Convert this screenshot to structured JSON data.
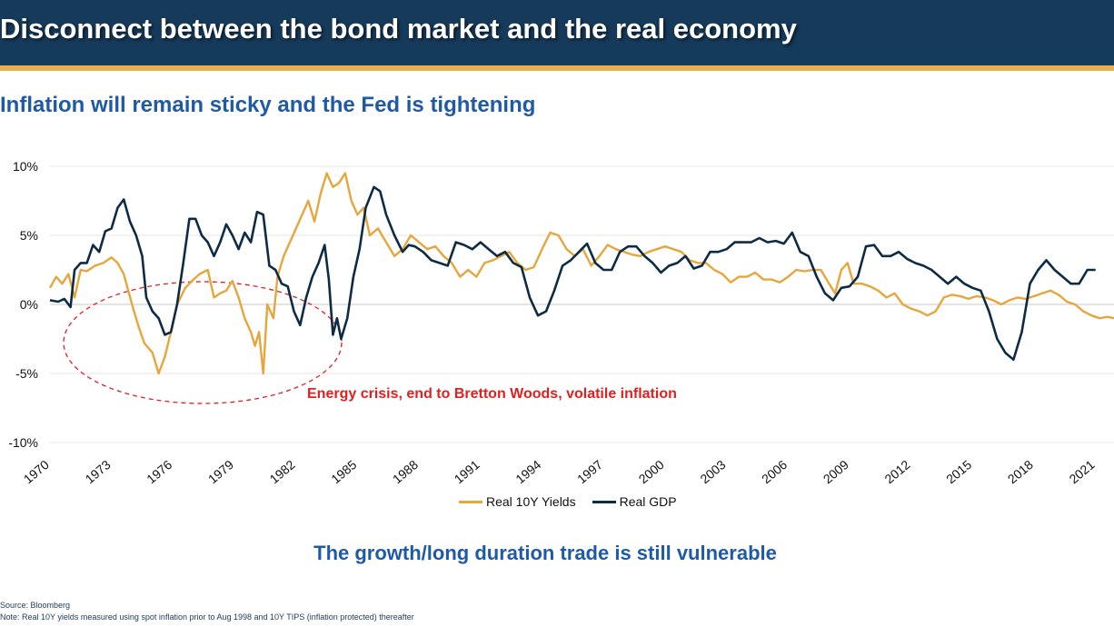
{
  "header": {
    "title": "Disconnect between the bond market and the real economy",
    "subtitle": "Inflation will remain sticky and the Fed is tightening"
  },
  "colors": {
    "banner": "#163a5a",
    "stripe": "#e7b04e",
    "real_yields": "#e7a63c",
    "real_gdp": "#0e2b45",
    "annotation": "#e02020",
    "accent_text": "#1f5aa6"
  },
  "chart_data": {
    "type": "line",
    "title": "",
    "xlabel": "",
    "ylabel": "",
    "x_range": [
      1970,
      2021.9
    ],
    "ylim": [
      -10,
      12
    ],
    "y_ticks": [
      10,
      5,
      0,
      -5,
      -10
    ],
    "y_tick_labels": [
      "10%",
      "5%",
      "0%",
      "-5%",
      "-10%"
    ],
    "x_ticks": [
      1970,
      1973,
      1976,
      1979,
      1982,
      1985,
      1988,
      1991,
      1994,
      1997,
      2000,
      2003,
      2006,
      2009,
      2012,
      2015,
      2018,
      2021
    ],
    "grid": "horizontal",
    "legend_position": "bottom",
    "series": [
      {
        "name": "Real 10Y Yields",
        "color": "#e7a63c",
        "points": [
          [
            1970.0,
            1.2
          ],
          [
            1970.3,
            2.0
          ],
          [
            1970.6,
            1.5
          ],
          [
            1970.9,
            2.2
          ],
          [
            1971.2,
            0.5
          ],
          [
            1971.5,
            2.5
          ],
          [
            1971.8,
            2.4
          ],
          [
            1972.2,
            2.8
          ],
          [
            1972.6,
            3.0
          ],
          [
            1973.0,
            3.4
          ],
          [
            1973.3,
            3.0
          ],
          [
            1973.6,
            2.2
          ],
          [
            1974.0,
            0.0
          ],
          [
            1974.3,
            -1.5
          ],
          [
            1974.6,
            -2.8
          ],
          [
            1975.0,
            -3.5
          ],
          [
            1975.3,
            -5.0
          ],
          [
            1975.6,
            -3.8
          ],
          [
            1975.9,
            -2.0
          ],
          [
            1976.2,
            0.0
          ],
          [
            1976.6,
            1.2
          ],
          [
            1977.0,
            1.8
          ],
          [
            1977.3,
            2.2
          ],
          [
            1977.7,
            2.5
          ],
          [
            1978.0,
            0.5
          ],
          [
            1978.3,
            0.8
          ],
          [
            1978.6,
            1.0
          ],
          [
            1978.9,
            1.7
          ],
          [
            1979.2,
            0.5
          ],
          [
            1979.5,
            -1.0
          ],
          [
            1979.8,
            -2.0
          ],
          [
            1980.0,
            -3.0
          ],
          [
            1980.2,
            -2.0
          ],
          [
            1980.4,
            -5.0
          ],
          [
            1980.6,
            0.0
          ],
          [
            1980.9,
            -1.0
          ],
          [
            1981.1,
            2.0
          ],
          [
            1981.4,
            3.5
          ],
          [
            1981.7,
            4.5
          ],
          [
            1982.0,
            5.5
          ],
          [
            1982.3,
            6.5
          ],
          [
            1982.6,
            7.5
          ],
          [
            1982.9,
            6.0
          ],
          [
            1983.2,
            8.0
          ],
          [
            1983.5,
            9.5
          ],
          [
            1983.8,
            8.5
          ],
          [
            1984.1,
            8.8
          ],
          [
            1984.4,
            9.5
          ],
          [
            1984.7,
            7.5
          ],
          [
            1985.0,
            6.5
          ],
          [
            1985.3,
            7.0
          ],
          [
            1985.6,
            5.0
          ],
          [
            1986.0,
            5.5
          ],
          [
            1986.4,
            4.5
          ],
          [
            1986.8,
            3.5
          ],
          [
            1987.2,
            4.0
          ],
          [
            1987.6,
            5.0
          ],
          [
            1988.0,
            4.5
          ],
          [
            1988.4,
            4.0
          ],
          [
            1988.8,
            4.2
          ],
          [
            1989.2,
            3.5
          ],
          [
            1989.6,
            3.0
          ],
          [
            1990.0,
            2.0
          ],
          [
            1990.4,
            2.5
          ],
          [
            1990.8,
            2.0
          ],
          [
            1991.2,
            3.0
          ],
          [
            1991.6,
            3.2
          ],
          [
            1992.0,
            3.5
          ],
          [
            1992.4,
            3.8
          ],
          [
            1992.8,
            3.0
          ],
          [
            1993.2,
            2.5
          ],
          [
            1993.6,
            2.7
          ],
          [
            1994.0,
            4.0
          ],
          [
            1994.4,
            5.2
          ],
          [
            1994.8,
            5.0
          ],
          [
            1995.2,
            4.0
          ],
          [
            1995.6,
            3.5
          ],
          [
            1996.0,
            4.0
          ],
          [
            1996.4,
            2.8
          ],
          [
            1996.8,
            3.5
          ],
          [
            1997.2,
            4.3
          ],
          [
            1997.6,
            4.0
          ],
          [
            1998.0,
            3.8
          ],
          [
            1998.4,
            3.6
          ],
          [
            1998.8,
            3.5
          ],
          [
            1999.2,
            3.8
          ],
          [
            1999.6,
            4.0
          ],
          [
            2000.0,
            4.2
          ],
          [
            2000.4,
            4.0
          ],
          [
            2000.8,
            3.8
          ],
          [
            2001.2,
            3.2
          ],
          [
            2001.6,
            3.0
          ],
          [
            2002.0,
            3.0
          ],
          [
            2002.4,
            2.5
          ],
          [
            2002.8,
            2.2
          ],
          [
            2003.2,
            1.6
          ],
          [
            2003.6,
            2.0
          ],
          [
            2004.0,
            2.0
          ],
          [
            2004.4,
            2.3
          ],
          [
            2004.8,
            1.8
          ],
          [
            2005.2,
            1.8
          ],
          [
            2005.6,
            1.6
          ],
          [
            2006.0,
            2.0
          ],
          [
            2006.4,
            2.5
          ],
          [
            2006.8,
            2.4
          ],
          [
            2007.2,
            2.5
          ],
          [
            2007.6,
            2.5
          ],
          [
            2008.0,
            1.5
          ],
          [
            2008.3,
            0.8
          ],
          [
            2008.6,
            2.5
          ],
          [
            2008.9,
            3.0
          ],
          [
            2009.2,
            1.5
          ],
          [
            2009.6,
            1.5
          ],
          [
            2010.0,
            1.3
          ],
          [
            2010.4,
            1.0
          ],
          [
            2010.8,
            0.5
          ],
          [
            2011.2,
            0.8
          ],
          [
            2011.6,
            0.0
          ],
          [
            2012.0,
            -0.3
          ],
          [
            2012.4,
            -0.5
          ],
          [
            2012.8,
            -0.8
          ],
          [
            2013.2,
            -0.5
          ],
          [
            2013.6,
            0.5
          ],
          [
            2014.0,
            0.7
          ],
          [
            2014.4,
            0.6
          ],
          [
            2014.8,
            0.4
          ],
          [
            2015.2,
            0.6
          ],
          [
            2015.6,
            0.5
          ],
          [
            2016.0,
            0.3
          ],
          [
            2016.4,
            0.0
          ],
          [
            2016.8,
            0.3
          ],
          [
            2017.2,
            0.5
          ],
          [
            2017.6,
            0.4
          ],
          [
            2018.0,
            0.6
          ],
          [
            2018.4,
            0.8
          ],
          [
            2018.8,
            1.0
          ],
          [
            2019.2,
            0.7
          ],
          [
            2019.6,
            0.2
          ],
          [
            2020.0,
            0.0
          ],
          [
            2020.4,
            -0.5
          ],
          [
            2020.8,
            -0.8
          ],
          [
            2021.2,
            -1.0
          ],
          [
            2021.6,
            -0.9
          ],
          [
            2021.9,
            -1.0
          ]
        ]
      },
      {
        "name": "Real GDP",
        "color": "#0e2b45",
        "points": [
          [
            1970.0,
            0.3
          ],
          [
            1970.4,
            0.2
          ],
          [
            1970.7,
            0.4
          ],
          [
            1971.0,
            -0.2
          ],
          [
            1971.2,
            2.5
          ],
          [
            1971.5,
            3.0
          ],
          [
            1971.8,
            3.0
          ],
          [
            1972.1,
            4.3
          ],
          [
            1972.4,
            3.8
          ],
          [
            1972.7,
            5.3
          ],
          [
            1973.0,
            5.5
          ],
          [
            1973.3,
            7.0
          ],
          [
            1973.6,
            7.6
          ],
          [
            1973.9,
            6.0
          ],
          [
            1974.2,
            5.0
          ],
          [
            1974.5,
            3.5
          ],
          [
            1974.7,
            0.5
          ],
          [
            1975.0,
            -0.5
          ],
          [
            1975.3,
            -1.0
          ],
          [
            1975.6,
            -2.2
          ],
          [
            1975.9,
            -2.0
          ],
          [
            1976.2,
            0.0
          ],
          [
            1976.5,
            3.0
          ],
          [
            1976.8,
            6.2
          ],
          [
            1977.1,
            6.2
          ],
          [
            1977.4,
            5.0
          ],
          [
            1977.7,
            4.5
          ],
          [
            1978.0,
            3.5
          ],
          [
            1978.3,
            4.5
          ],
          [
            1978.6,
            5.8
          ],
          [
            1978.9,
            5.0
          ],
          [
            1979.2,
            4.0
          ],
          [
            1979.5,
            5.2
          ],
          [
            1979.8,
            4.5
          ],
          [
            1980.1,
            6.7
          ],
          [
            1980.4,
            6.5
          ],
          [
            1980.7,
            2.8
          ],
          [
            1981.0,
            2.5
          ],
          [
            1981.3,
            1.5
          ],
          [
            1981.6,
            1.3
          ],
          [
            1981.9,
            -0.5
          ],
          [
            1982.2,
            -1.5
          ],
          [
            1982.5,
            0.5
          ],
          [
            1982.8,
            2.0
          ],
          [
            1983.1,
            3.0
          ],
          [
            1983.4,
            4.3
          ],
          [
            1983.6,
            1.8
          ],
          [
            1983.8,
            -2.2
          ],
          [
            1984.0,
            -1.0
          ],
          [
            1984.2,
            -2.5
          ],
          [
            1984.5,
            -1.0
          ],
          [
            1984.8,
            2.0
          ],
          [
            1985.1,
            4.0
          ],
          [
            1985.4,
            7.0
          ],
          [
            1985.8,
            8.5
          ],
          [
            1986.1,
            8.2
          ],
          [
            1986.4,
            6.5
          ],
          [
            1986.8,
            5.0
          ],
          [
            1987.2,
            3.8
          ],
          [
            1987.5,
            4.3
          ],
          [
            1987.8,
            4.2
          ],
          [
            1988.2,
            3.8
          ],
          [
            1988.6,
            3.2
          ],
          [
            1989.0,
            3.0
          ],
          [
            1989.4,
            2.8
          ],
          [
            1989.8,
            4.5
          ],
          [
            1990.2,
            4.3
          ],
          [
            1990.6,
            4.0
          ],
          [
            1991.0,
            4.5
          ],
          [
            1991.4,
            4.0
          ],
          [
            1991.8,
            3.5
          ],
          [
            1992.2,
            3.8
          ],
          [
            1992.6,
            3.0
          ],
          [
            1993.0,
            2.7
          ],
          [
            1993.4,
            0.5
          ],
          [
            1993.8,
            -0.8
          ],
          [
            1994.2,
            -0.5
          ],
          [
            1994.6,
            1.0
          ],
          [
            1995.0,
            2.8
          ],
          [
            1995.4,
            3.2
          ],
          [
            1995.8,
            3.8
          ],
          [
            1996.2,
            4.4
          ],
          [
            1996.6,
            3.0
          ],
          [
            1997.0,
            2.5
          ],
          [
            1997.4,
            2.5
          ],
          [
            1997.8,
            3.8
          ],
          [
            1998.2,
            4.2
          ],
          [
            1998.6,
            4.2
          ],
          [
            1999.0,
            3.5
          ],
          [
            1999.4,
            3.0
          ],
          [
            1999.8,
            2.3
          ],
          [
            2000.2,
            2.8
          ],
          [
            2000.6,
            3.0
          ],
          [
            2001.0,
            3.5
          ],
          [
            2001.4,
            2.6
          ],
          [
            2001.8,
            2.8
          ],
          [
            2002.2,
            3.8
          ],
          [
            2002.6,
            3.8
          ],
          [
            2003.0,
            4.0
          ],
          [
            2003.4,
            4.5
          ],
          [
            2003.8,
            4.5
          ],
          [
            2004.2,
            4.5
          ],
          [
            2004.6,
            4.8
          ],
          [
            2005.0,
            4.5
          ],
          [
            2005.4,
            4.6
          ],
          [
            2005.8,
            4.4
          ],
          [
            2006.2,
            5.2
          ],
          [
            2006.6,
            3.8
          ],
          [
            2007.0,
            3.5
          ],
          [
            2007.4,
            2.0
          ],
          [
            2007.8,
            0.8
          ],
          [
            2008.2,
            0.3
          ],
          [
            2008.6,
            1.2
          ],
          [
            2009.0,
            1.3
          ],
          [
            2009.4,
            2.0
          ],
          [
            2009.8,
            4.2
          ],
          [
            2010.2,
            4.3
          ],
          [
            2010.6,
            3.5
          ],
          [
            2011.0,
            3.5
          ],
          [
            2011.4,
            3.8
          ],
          [
            2011.8,
            3.3
          ],
          [
            2012.2,
            3.0
          ],
          [
            2012.6,
            2.8
          ],
          [
            2013.0,
            2.5
          ],
          [
            2013.4,
            2.0
          ],
          [
            2013.8,
            1.5
          ],
          [
            2014.2,
            2.0
          ],
          [
            2014.6,
            1.5
          ],
          [
            2015.0,
            1.2
          ],
          [
            2015.4,
            1.0
          ],
          [
            2015.8,
            -0.5
          ],
          [
            2016.2,
            -2.5
          ],
          [
            2016.6,
            -3.5
          ],
          [
            2017.0,
            -4.0
          ],
          [
            2017.4,
            -2.0
          ],
          [
            2017.8,
            1.5
          ],
          [
            2018.2,
            2.5
          ],
          [
            2018.6,
            3.2
          ],
          [
            2019.0,
            2.5
          ],
          [
            2019.4,
            2.0
          ],
          [
            2019.8,
            1.5
          ],
          [
            2020.2,
            1.5
          ],
          [
            2020.6,
            2.5
          ],
          [
            2021.0,
            2.5
          ]
        ]
      }
    ],
    "annotation": "Energy crisis, end to Bretton Woods, volatile inflation"
  },
  "legend": {
    "items": [
      {
        "label": "Real 10Y Yields"
      },
      {
        "label": "Real GDP"
      }
    ]
  },
  "conclusion": "The growth/long duration trade is still vulnerable",
  "footnotes": {
    "source": "Source: Bloomberg",
    "note": "Note: Real 10Y yields measured using spot inflation prior to Aug 1998 and 10Y TIPS (inflation protected) thereafter"
  }
}
